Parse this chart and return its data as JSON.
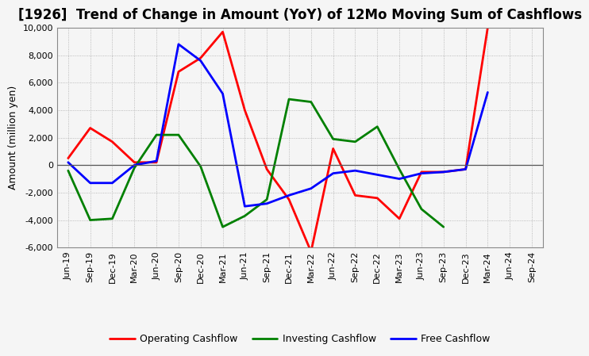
{
  "title": "[1926]  Trend of Change in Amount (YoY) of 12Mo Moving Sum of Cashflows",
  "ylabel": "Amount (million yen)",
  "x_labels": [
    "Jun-19",
    "Sep-19",
    "Dec-19",
    "Mar-20",
    "Jun-20",
    "Sep-20",
    "Dec-20",
    "Mar-21",
    "Jun-21",
    "Sep-21",
    "Dec-21",
    "Mar-22",
    "Jun-22",
    "Sep-22",
    "Dec-22",
    "Mar-23",
    "Jun-23",
    "Sep-23",
    "Dec-23",
    "Mar-24",
    "Jun-24",
    "Sep-24"
  ],
  "operating": [
    500,
    2700,
    1700,
    200,
    200,
    6800,
    7800,
    9700,
    4000,
    -300,
    -2500,
    -6300,
    1200,
    -2200,
    -2400,
    -3900,
    -500,
    -500,
    -300,
    10000,
    null,
    null
  ],
  "investing": [
    -400,
    -4000,
    -3900,
    -200,
    2200,
    2200,
    -100,
    -4500,
    -3700,
    -2500,
    4800,
    4600,
    1900,
    1700,
    2800,
    -300,
    -3200,
    -4500,
    null,
    null,
    null,
    null
  ],
  "free": [
    200,
    -1300,
    -1300,
    0,
    300,
    8800,
    7600,
    5200,
    -3000,
    -2800,
    -2200,
    -1700,
    -600,
    -400,
    -700,
    -1000,
    -600,
    -500,
    -300,
    5300,
    null,
    null
  ],
  "operating_color": "#ff0000",
  "investing_color": "#008000",
  "free_color": "#0000ff",
  "ylim": [
    -6000,
    10000
  ],
  "yticks": [
    -6000,
    -4000,
    -2000,
    0,
    2000,
    4000,
    6000,
    8000,
    10000
  ],
  "background_color": "#f5f5f5",
  "plot_bg_color": "#f5f5f5",
  "grid_color": "#aaaaaa",
  "title_fontsize": 12,
  "axis_label_fontsize": 9,
  "tick_fontsize": 8,
  "legend_labels": [
    "Operating Cashflow",
    "Investing Cashflow",
    "Free Cashflow"
  ],
  "line_width": 2.0
}
